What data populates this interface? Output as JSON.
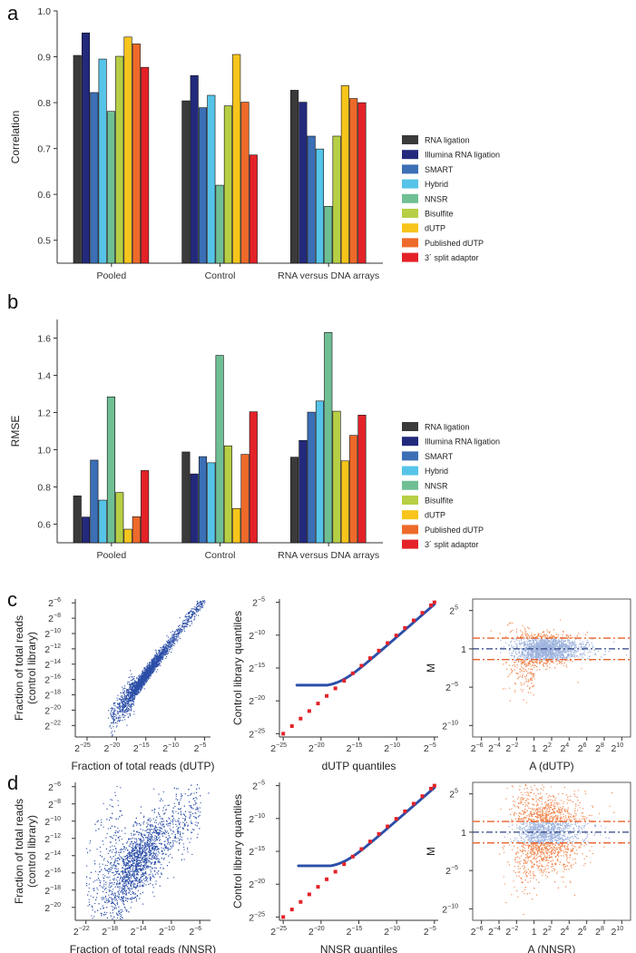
{
  "colors": [
    "#3a3a3a",
    "#232a7c",
    "#3b6fb6",
    "#56c4e8",
    "#6fbf94",
    "#b6cf45",
    "#f7c51c",
    "#ee6a2a",
    "#e32228"
  ],
  "panels": {
    "a": "a",
    "b": "b",
    "c": "c",
    "d": "d"
  },
  "legend": [
    "RNA ligation",
    "Illumina RNA ligation",
    "SMART",
    "Hybrid",
    "NNSR",
    "Bisulfite",
    "dUTP",
    "Published dUTP",
    "3´ split adaptor"
  ],
  "chart_data": [
    {
      "id": "a",
      "type": "bar",
      "ylabel": "Correlation",
      "ylim": [
        0.45,
        1.0
      ],
      "yticks": [
        0.5,
        0.6,
        0.7,
        0.8,
        0.9,
        1.0
      ],
      "ytick_labels": [
        "0.5",
        "0.6",
        "0.7",
        "0.8",
        "0.9",
        "1.0"
      ],
      "categories": [
        "Pooled",
        "Control",
        "RNA versus DNA arrays"
      ],
      "series": [
        {
          "name": "RNA ligation",
          "values": [
            0.903,
            0.804,
            0.827
          ]
        },
        {
          "name": "Illumina RNA ligation",
          "values": [
            0.952,
            0.859,
            0.801
          ]
        },
        {
          "name": "SMART",
          "values": [
            0.822,
            0.789,
            0.727
          ]
        },
        {
          "name": "Hybrid",
          "values": [
            0.895,
            0.816,
            0.699
          ]
        },
        {
          "name": "NNSR",
          "values": [
            0.781,
            0.62,
            0.574
          ]
        },
        {
          "name": "Bisulfite",
          "values": [
            0.901,
            0.793,
            0.727
          ]
        },
        {
          "name": "dUTP",
          "values": [
            0.943,
            0.905,
            0.837
          ]
        },
        {
          "name": "Published dUTP",
          "values": [
            0.928,
            0.801,
            0.809
          ]
        },
        {
          "name": "3´ split adaptor",
          "values": [
            0.877,
            0.686,
            0.8
          ]
        }
      ]
    },
    {
      "id": "b",
      "type": "bar",
      "ylabel": "RMSE",
      "ylim": [
        0.5,
        1.7
      ],
      "yticks": [
        0.6,
        0.8,
        1.0,
        1.2,
        1.4,
        1.6
      ],
      "ytick_labels": [
        "0.6",
        "0.8",
        "1.0",
        "1.2",
        "1.4",
        "1.6"
      ],
      "categories": [
        "Pooled",
        "Control",
        "RNA versus DNA arrays"
      ],
      "series": [
        {
          "name": "RNA ligation",
          "values": [
            0.752,
            0.988,
            0.96
          ]
        },
        {
          "name": "Illumina RNA ligation",
          "values": [
            0.638,
            0.87,
            1.05
          ]
        },
        {
          "name": "SMART",
          "values": [
            0.944,
            0.963,
            1.202
          ]
        },
        {
          "name": "Hybrid",
          "values": [
            0.729,
            0.93,
            1.262
          ]
        },
        {
          "name": "NNSR",
          "values": [
            1.284,
            1.507,
            1.63
          ]
        },
        {
          "name": "Bisulfite",
          "values": [
            0.77,
            1.021,
            1.207
          ]
        },
        {
          "name": "dUTP",
          "values": [
            0.573,
            0.684,
            0.94
          ]
        },
        {
          "name": "Published dUTP",
          "values": [
            0.64,
            0.975,
            1.077
          ]
        },
        {
          "name": "3´ split adaptor",
          "values": [
            0.888,
            1.204,
            1.186
          ]
        }
      ]
    },
    {
      "id": "c1",
      "type": "scatter",
      "xlabel": "Fraction of total reads (dUTP)",
      "ylabel_lines": [
        "Fraction of total reads",
        "(control library)"
      ],
      "xlim": [
        -27,
        -4
      ],
      "ylim": [
        -23.5,
        -5.5
      ],
      "xticks": [
        -25,
        -20,
        -15,
        -10,
        -5
      ],
      "xtick_labels": [
        "−25",
        "−20",
        "−15",
        "−10",
        "−5"
      ],
      "yticks": [
        -22,
        -20,
        -18,
        -16,
        -14,
        -12,
        -10,
        -8,
        -6
      ],
      "ytick_labels": [
        "−22",
        "−20",
        "−18",
        "−16",
        "−14",
        "−12",
        "−10",
        "−8",
        "−6"
      ],
      "tick_base": "2",
      "description": "log2 fraction of total reads, control library vs dUTP; strong diagonal correlation",
      "cloud": {
        "x_range": [
          -21,
          -5
        ],
        "mean": [
          -15.5,
          -15.8
        ],
        "spread": [
          1.8,
          0.6
        ],
        "n": 2600,
        "slope": 1.0,
        "noise": 0.45
      }
    },
    {
      "id": "c2",
      "type": "scatter",
      "xlabel": "dUTP quantiles",
      "ylabel": "Control library quantiles",
      "xlim": [
        -25.5,
        -4.5
      ],
      "ylim": [
        -25.5,
        -4.5
      ],
      "xticks": [
        -25,
        -20,
        -15,
        -10,
        -5
      ],
      "xtick_labels": [
        "−25",
        "−20",
        "−15",
        "−10",
        "−5"
      ],
      "yticks": [
        -25,
        -20,
        -15,
        -10,
        -5
      ],
      "ytick_labels": [
        "−25",
        "−20",
        "−15",
        "−10",
        "−5"
      ],
      "tick_base": "2",
      "qq_floor": -17.6,
      "qq_start": -23.2
    },
    {
      "id": "c3",
      "type": "scatter",
      "xlabel": "A (dUTP)",
      "ylabel": "M",
      "xlim": [
        -7,
        11
      ],
      "ylim": [
        -11.5,
        6.5
      ],
      "xticks": [
        -6,
        -4,
        -2,
        0,
        2,
        4,
        6,
        8,
        10
      ],
      "xtick_labels": [
        "−6",
        "−4",
        "−2",
        "1",
        "2",
        "4",
        "6",
        "8",
        "10"
      ],
      "yticks": [
        5,
        0,
        -5,
        -10
      ],
      "ytick_labels": [
        "5",
        "1",
        "−5",
        "−10"
      ],
      "tick_base": "2",
      "hlines": [
        1.4,
        0,
        -1.4
      ],
      "spread": 0.9
    },
    {
      "id": "d1",
      "type": "scatter",
      "xlabel": "Fraction of total reads (NNSR)",
      "ylabel_lines": [
        "Fraction of total reads",
        "(control library)"
      ],
      "xlim": [
        -23.5,
        -4.5
      ],
      "ylim": [
        -21.5,
        -5.5
      ],
      "xticks": [
        -22,
        -18,
        -14,
        -10,
        -6
      ],
      "xtick_labels": [
        "−22",
        "−18",
        "−14",
        "−10",
        "−6"
      ],
      "yticks": [
        -20,
        -18,
        -16,
        -14,
        -12,
        -10,
        -8,
        -6
      ],
      "ytick_labels": [
        "−20",
        "−18",
        "−16",
        "−14",
        "−12",
        "−10",
        "−8",
        "−6"
      ],
      "tick_base": "2",
      "description": "log2 fraction of total reads, control library vs NNSR; diffuse correlation",
      "cloud": {
        "x_range": [
          -22,
          -6
        ],
        "mean": [
          -15.2,
          -15.0
        ],
        "spread": [
          2.2,
          0.6
        ],
        "n": 2800,
        "slope": 0.75,
        "noise": 1.9
      }
    },
    {
      "id": "d2",
      "type": "scatter",
      "xlabel": "NNSR quantiles",
      "ylabel": "Control library quantiles",
      "xlim": [
        -25.5,
        -4.5
      ],
      "ylim": [
        -25.5,
        -4.5
      ],
      "xticks": [
        -25,
        -20,
        -15,
        -10,
        -5
      ],
      "xtick_labels": [
        "−25",
        "−20",
        "−15",
        "−10",
        "−5"
      ],
      "yticks": [
        -25,
        -20,
        -15,
        -10,
        -5
      ],
      "ytick_labels": [
        "−25",
        "−20",
        "−15",
        "−10",
        "−5"
      ],
      "tick_base": "2",
      "qq_floor": -17.2,
      "qq_start": -23.0
    },
    {
      "id": "d3",
      "type": "scatter",
      "xlabel": "A (NNSR)",
      "ylabel": "M",
      "xlim": [
        -7,
        11
      ],
      "ylim": [
        -11.5,
        6.5
      ],
      "xticks": [
        -6,
        -4,
        -2,
        0,
        2,
        4,
        6,
        8,
        10
      ],
      "xtick_labels": [
        "−6",
        "−4",
        "−2",
        "1",
        "2",
        "4",
        "6",
        "8",
        "10"
      ],
      "yticks": [
        5,
        0,
        -5,
        -10
      ],
      "ytick_labels": [
        "5",
        "1",
        "−5",
        "−10"
      ],
      "tick_base": "2",
      "hlines": [
        1.4,
        0,
        -1.4
      ],
      "spread": 2.4
    }
  ]
}
